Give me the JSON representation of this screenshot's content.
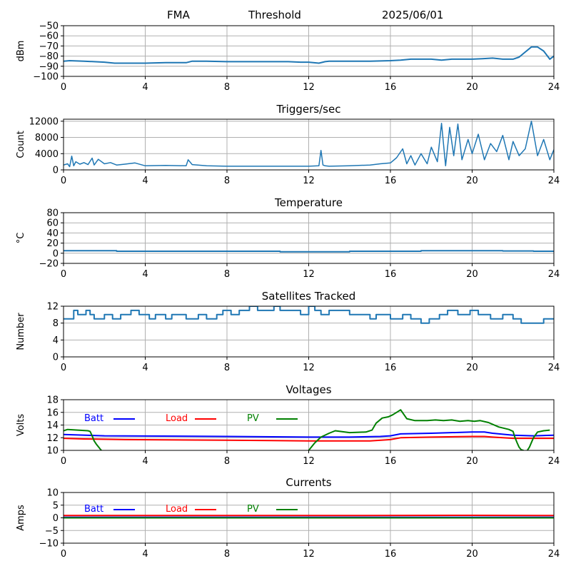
{
  "header": {
    "station": "FMA",
    "mode": "Threshold",
    "date": "2025/06/01"
  },
  "chart_data": [
    {
      "type": "line",
      "title": "",
      "ylabel": "dBm",
      "xlim": [
        0,
        24
      ],
      "ylim": [
        -100,
        -50
      ],
      "xticks": [
        0,
        4,
        8,
        12,
        16,
        20,
        24
      ],
      "yticks": [
        -100,
        -90,
        -80,
        -70,
        -60,
        -50
      ],
      "ytick_labels": [
        "−100",
        "−90",
        "−80",
        "−70",
        "−60",
        "−50"
      ],
      "grid": true,
      "series": [
        {
          "color": "#1f77b4",
          "width": 2,
          "x": [
            0,
            0.3,
            1,
            1.5,
            2,
            2.5,
            3,
            4,
            5,
            6,
            6.3,
            7,
            8,
            9,
            10,
            11,
            11.6,
            12,
            12.5,
            12.8,
            13,
            14,
            15,
            16,
            16.5,
            17,
            18,
            18.5,
            19,
            20,
            20.5,
            21,
            21.5,
            22,
            22.3,
            22.6,
            22.9,
            23.2,
            23.5,
            23.8,
            24
          ],
          "y": [
            -85,
            -84.5,
            -85,
            -85.5,
            -86,
            -87,
            -87,
            -87,
            -86.5,
            -86.5,
            -85,
            -85,
            -85.5,
            -85.5,
            -85.5,
            -85.5,
            -86,
            -86,
            -87,
            -85.5,
            -85,
            -85,
            -85,
            -84.5,
            -84,
            -83,
            -83,
            -84,
            -83,
            -83,
            -82.5,
            -82,
            -83,
            -83,
            -81,
            -76,
            -71,
            -71,
            -75,
            -83,
            -80
          ]
        }
      ]
    },
    {
      "type": "line",
      "title": "Triggers/sec",
      "ylabel": "Count",
      "xlim": [
        0,
        24
      ],
      "ylim": [
        0,
        12500
      ],
      "xticks": [
        0,
        4,
        8,
        12,
        16,
        20,
        24
      ],
      "yticks": [
        0,
        4000,
        8000,
        12000
      ],
      "ytick_labels": [
        "0",
        "4000",
        "8000",
        "12000"
      ],
      "grid": true,
      "series": [
        {
          "color": "#1f77b4",
          "width": 1.5,
          "x": [
            0,
            0.2,
            0.3,
            0.4,
            0.5,
            0.6,
            0.8,
            1,
            1.2,
            1.4,
            1.5,
            1.7,
            2,
            2.3,
            2.6,
            3,
            3.5,
            4,
            5,
            6,
            6.1,
            6.3,
            7,
            8,
            9,
            10,
            11,
            12,
            12.5,
            12.6,
            12.7,
            12.8,
            13,
            14,
            15,
            15.5,
            16,
            16.3,
            16.6,
            16.8,
            17,
            17.2,
            17.5,
            17.8,
            18,
            18.3,
            18.5,
            18.7,
            18.9,
            19.1,
            19.3,
            19.5,
            19.8,
            20,
            20.3,
            20.6,
            20.9,
            21.2,
            21.5,
            21.8,
            22,
            22.3,
            22.6,
            22.9,
            23.2,
            23.5,
            23.8,
            24
          ],
          "y": [
            1200,
            1500,
            800,
            3400,
            1000,
            2000,
            1400,
            1800,
            1300,
            2900,
            1200,
            2600,
            1500,
            1800,
            1200,
            1400,
            1700,
            1000,
            1100,
            1000,
            2500,
            1300,
            1000,
            900,
            900,
            900,
            900,
            900,
            1000,
            4800,
            1200,
            1000,
            900,
            1000,
            1200,
            1500,
            1700,
            3000,
            5200,
            1500,
            3500,
            1200,
            4000,
            1500,
            5600,
            2000,
            11500,
            1000,
            10500,
            3500,
            11300,
            2500,
            7500,
            4000,
            8800,
            2500,
            6500,
            4500,
            8500,
            2500,
            7000,
            3500,
            5200,
            12000,
            3500,
            7500,
            2500,
            5000
          ]
        }
      ]
    },
    {
      "type": "line",
      "title": "Temperature",
      "ylabel": "°C",
      "xlim": [
        0,
        24
      ],
      "ylim": [
        -20,
        80
      ],
      "xticks": [
        0,
        4,
        8,
        12,
        16,
        20,
        24
      ],
      "yticks": [
        -20,
        0,
        20,
        40,
        60,
        80
      ],
      "ytick_labels": [
        "−20",
        "0",
        "20",
        "40",
        "60",
        "80"
      ],
      "grid": true,
      "series": [
        {
          "color": "#1f77b4",
          "width": 2,
          "x": [
            0,
            2.6,
            2.6,
            10.6,
            10.6,
            14,
            14,
            17.5,
            17.5,
            21.5,
            21.5,
            23,
            23,
            24
          ],
          "y": [
            5,
            5,
            4,
            4,
            3,
            3,
            4,
            4,
            5,
            5,
            4.5,
            4.5,
            4,
            4
          ]
        }
      ]
    },
    {
      "type": "line",
      "title": "Satellites Tracked",
      "ylabel": "Number",
      "xlim": [
        0,
        24
      ],
      "ylim": [
        0,
        12
      ],
      "xticks": [
        0,
        4,
        8,
        12,
        16,
        20,
        24
      ],
      "yticks": [
        0,
        4,
        8,
        12
      ],
      "ytick_labels": [
        "0",
        "4",
        "8",
        "12"
      ],
      "grid": true,
      "series": [
        {
          "color": "#1f77b4",
          "width": 2,
          "x": [
            0,
            0.5,
            0.5,
            0.7,
            0.7,
            1.1,
            1.1,
            1.3,
            1.3,
            1.5,
            1.5,
            2,
            2,
            2.4,
            2.4,
            2.8,
            2.8,
            3.3,
            3.3,
            3.7,
            3.7,
            4.2,
            4.2,
            4.5,
            4.5,
            5,
            5,
            5.3,
            5.3,
            6,
            6,
            6.6,
            6.6,
            7,
            7,
            7.5,
            7.5,
            7.8,
            7.8,
            8.2,
            8.2,
            8.6,
            8.6,
            9.1,
            9.1,
            9.5,
            9.5,
            10.3,
            10.3,
            10.6,
            10.6,
            11.6,
            11.6,
            12,
            12,
            12.3,
            12.3,
            12.6,
            12.6,
            13,
            13,
            14,
            14,
            15,
            15,
            15.3,
            15.3,
            16,
            16,
            16.6,
            16.6,
            17,
            17,
            17.5,
            17.5,
            17.9,
            17.9,
            18.4,
            18.4,
            18.8,
            18.8,
            19.3,
            19.3,
            19.9,
            19.9,
            20.3,
            20.3,
            20.9,
            20.9,
            21.5,
            21.5,
            22,
            22,
            22.4,
            22.4,
            23.5,
            23.5,
            24
          ],
          "y": [
            9,
            9,
            11,
            11,
            10,
            10,
            11,
            11,
            10,
            10,
            9,
            9,
            10,
            10,
            9,
            9,
            10,
            10,
            11,
            11,
            10,
            10,
            9,
            9,
            10,
            10,
            9,
            9,
            10,
            10,
            9,
            9,
            10,
            10,
            9,
            9,
            10,
            10,
            11,
            11,
            10,
            10,
            11,
            11,
            12,
            12,
            11,
            11,
            12,
            12,
            11,
            11,
            10,
            10,
            12,
            12,
            11,
            11,
            10,
            10,
            11,
            11,
            10,
            10,
            9,
            9,
            10,
            10,
            9,
            9,
            10,
            10,
            9,
            9,
            8,
            8,
            9,
            9,
            10,
            10,
            11,
            11,
            10,
            10,
            11,
            11,
            10,
            10,
            9,
            9,
            10,
            10,
            9,
            9,
            8,
            8,
            9,
            9
          ]
        }
      ]
    },
    {
      "type": "line",
      "title": "Voltages",
      "ylabel": "Volts",
      "xlim": [
        0,
        24
      ],
      "ylim": [
        10,
        18
      ],
      "xticks": [
        0,
        4,
        8,
        12,
        16,
        20,
        24
      ],
      "yticks": [
        10,
        12,
        14,
        16,
        18
      ],
      "ytick_labels": [
        "10",
        "12",
        "14",
        "16",
        "18"
      ],
      "grid": true,
      "legend": "top-left",
      "series": [
        {
          "name": "Batt",
          "color": "#0000ff",
          "width": 2,
          "x": [
            0,
            2,
            8,
            12,
            14,
            15.5,
            16,
            16.5,
            18,
            20,
            20.6,
            21,
            22,
            23,
            24
          ],
          "y": [
            12.5,
            12.3,
            12.2,
            12.1,
            12.1,
            12.2,
            12.3,
            12.6,
            12.7,
            12.9,
            12.9,
            12.7,
            12.4,
            12.3,
            12.4
          ]
        },
        {
          "name": "Load",
          "color": "#ff0000",
          "width": 2,
          "x": [
            0,
            1,
            3,
            8,
            12,
            15,
            16,
            16.5,
            18,
            20,
            20.6,
            21,
            22,
            24
          ],
          "y": [
            11.9,
            11.8,
            11.7,
            11.6,
            11.5,
            11.5,
            11.7,
            12,
            12.1,
            12.2,
            12.2,
            12.1,
            11.9,
            11.9
          ]
        },
        {
          "name": "PV",
          "color": "#008000",
          "width": 2,
          "x": [
            0,
            0.2,
            1.2,
            1.3,
            1.4,
            1.5,
            1.6,
            1.7,
            1.8,
            1.85,
            1.9,
            11.9,
            12,
            12.3,
            12.6,
            13,
            13.3,
            14,
            14.8,
            15.1,
            15.3,
            15.6,
            15.9,
            16.1,
            16.3,
            16.5,
            16.8,
            17.2,
            17.8,
            18.2,
            18.6,
            19,
            19.4,
            19.8,
            20.1,
            20.4,
            20.8,
            21.3,
            21.8,
            22,
            22.1,
            22.2,
            22.3,
            22.4,
            22.5,
            22.55,
            22.6,
            22.8,
            23,
            23.2,
            23.5,
            23.8
          ],
          "y": [
            13.1,
            13.3,
            13.1,
            13.0,
            12.3,
            11.5,
            11,
            10.6,
            10.2,
            10,
            9.5,
            9.5,
            10,
            11.2,
            12.1,
            12.7,
            13.1,
            12.8,
            12.9,
            13.2,
            14.3,
            15.1,
            15.3,
            15.6,
            16.0,
            16.4,
            15,
            14.7,
            14.7,
            14.8,
            14.7,
            14.8,
            14.6,
            14.7,
            14.6,
            14.7,
            14.4,
            13.7,
            13.3,
            13.0,
            12.0,
            11.2,
            10.5,
            10.1,
            10,
            9.5,
            9.5,
            10.5,
            12.0,
            12.9,
            13.1,
            13.2
          ]
        }
      ]
    },
    {
      "type": "line",
      "title": "Currents",
      "ylabel": "Amps",
      "xlim": [
        0,
        24
      ],
      "ylim": [
        -10,
        10
      ],
      "xticks": [
        0,
        4,
        8,
        12,
        16,
        20,
        24
      ],
      "yticks": [
        -10,
        -5,
        0,
        5,
        10
      ],
      "ytick_labels": [
        "−10",
        "−5",
        "0",
        "5",
        "10"
      ],
      "grid": true,
      "legend": "top-left",
      "series": [
        {
          "name": "Batt",
          "color": "#0000ff",
          "width": 2,
          "x": [
            0,
            24
          ],
          "y": [
            0.2,
            0.2
          ]
        },
        {
          "name": "Load",
          "color": "#ff0000",
          "width": 2,
          "x": [
            0,
            12,
            20,
            24
          ],
          "y": [
            0.9,
            0.9,
            1.0,
            0.9
          ]
        },
        {
          "name": "PV",
          "color": "#008000",
          "width": 2,
          "x": [
            0,
            24
          ],
          "y": [
            0,
            0
          ]
        }
      ]
    }
  ]
}
